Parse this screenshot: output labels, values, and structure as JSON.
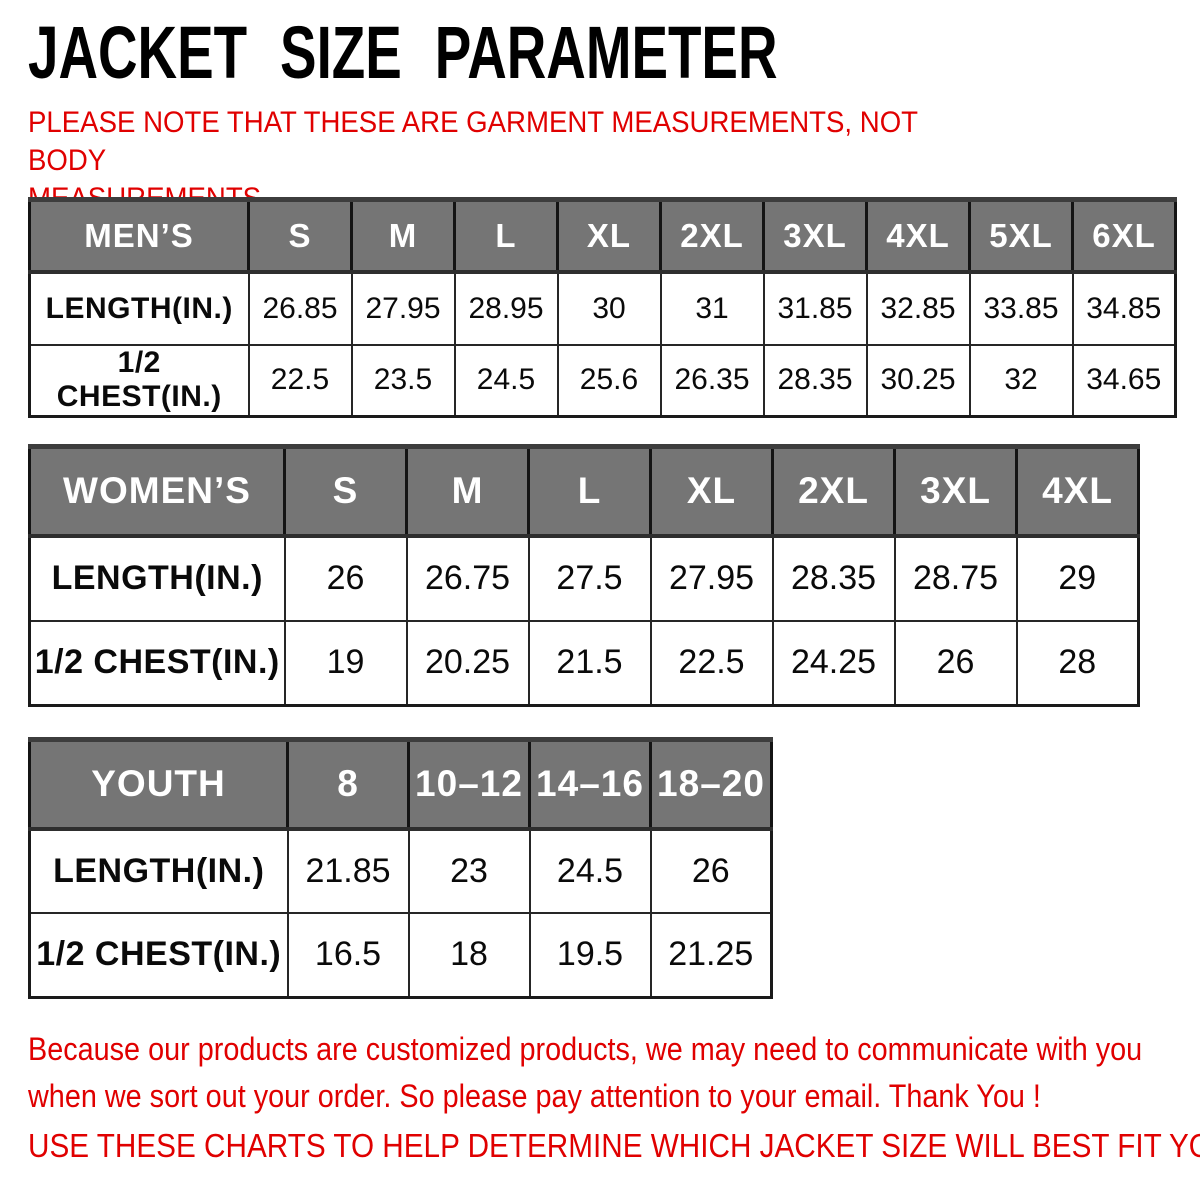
{
  "title": "JACKET SIZE PARAMETER",
  "note": {
    "lines": [
      "PLEASE NOTE THAT THESE ARE GARMENT MEASUREMENTS, NOT BODY",
      "MEASUREMENTS"
    ]
  },
  "colors": {
    "accent_red": "#e00000",
    "header_gray": "#757575",
    "border_dark": "#1a1a1a",
    "text_black": "#000000",
    "header_text": "#ffffff"
  },
  "tables": {
    "mens": {
      "label": "MEN’S",
      "sizes": [
        "S",
        "M",
        "L",
        "XL",
        "2XL",
        "3XL",
        "4XL",
        "5XL",
        "6XL"
      ],
      "rows": [
        {
          "label": "LENGTH(IN.)",
          "values": [
            "26.85",
            "27.95",
            "28.95",
            "30",
            "31",
            "31.85",
            "32.85",
            "33.85",
            "34.85"
          ]
        },
        {
          "label": "1/2 CHEST(IN.)",
          "values": [
            "22.5",
            "23.5",
            "24.5",
            "25.6",
            "26.35",
            "28.35",
            "30.25",
            "32",
            "34.65"
          ]
        }
      ]
    },
    "womens": {
      "label": "WOMEN’S",
      "sizes": [
        "S",
        "M",
        "L",
        "XL",
        "2XL",
        "3XL",
        "4XL"
      ],
      "rows": [
        {
          "label": "LENGTH(IN.)",
          "values": [
            "26",
            "26.75",
            "27.5",
            "27.95",
            "28.35",
            "28.75",
            "29"
          ]
        },
        {
          "label": "1/2 CHEST(IN.)",
          "values": [
            "19",
            "20.25",
            "21.5",
            "22.5",
            "24.25",
            "26",
            "28"
          ]
        }
      ]
    },
    "youth": {
      "label": "YOUTH",
      "sizes": [
        "8",
        "10–12",
        "14–16",
        "18–20"
      ],
      "rows": [
        {
          "label": "LENGTH(IN.)",
          "values": [
            "21.85",
            "23",
            "24.5",
            "26"
          ]
        },
        {
          "label": "1/2 CHEST(IN.)",
          "values": [
            "16.5",
            "18",
            "19.5",
            "21.25"
          ]
        }
      ]
    }
  },
  "footer": {
    "communication_lines": [
      "Because our products are customized products, we may need to communicate with you",
      "when we sort out your order. So please pay attention to your email. Thank You !"
    ],
    "usage_note": "USE THESE CHARTS TO HELP DETERMINE WHICH JACKET SIZE WILL BEST FIT YOU."
  }
}
